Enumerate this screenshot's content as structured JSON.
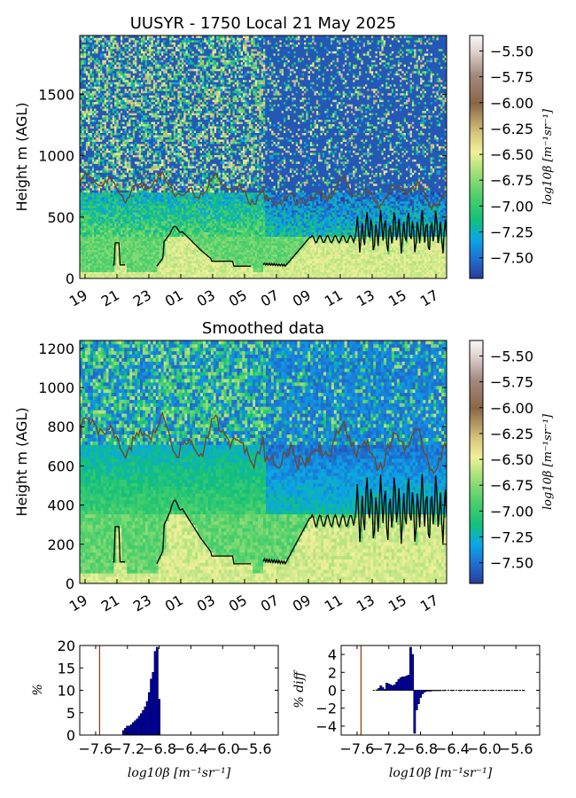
{
  "chart_data": [
    {
      "type": "heatmap",
      "title": "UUSYR - 1750 Local 21 May 2025",
      "xlabel": "",
      "ylabel": "Height m (AGL)",
      "x_tick_labels": [
        "19",
        "21",
        "23",
        "01",
        "03",
        "05",
        "07",
        "09",
        "11",
        "13",
        "15",
        "17"
      ],
      "y_ticks": [
        0,
        500,
        1000,
        1500
      ],
      "ylim": [
        0,
        1980
      ],
      "colorbar_label": "log10β [m⁻¹sr⁻¹]",
      "colorbar_ticks": [
        "-5.50",
        "-5.75",
        "-6.00",
        "-6.25",
        "-6.50",
        "-6.75",
        "-7.00",
        "-7.25",
        "-7.50"
      ],
      "colorbar_range": [
        -7.7,
        -5.35
      ],
      "overlay_lines": [
        {
          "color": "#000000",
          "label": "black line (boundary layer height)"
        },
        {
          "color": "#6b4a2e",
          "label": "brown line"
        }
      ]
    },
    {
      "type": "heatmap",
      "title": "Smoothed data",
      "xlabel": "",
      "ylabel": "Height m (AGL)",
      "x_tick_labels": [
        "19",
        "21",
        "23",
        "01",
        "03",
        "05",
        "07",
        "09",
        "11",
        "13",
        "15",
        "17"
      ],
      "y_ticks": [
        0,
        200,
        400,
        600,
        800,
        1000,
        1200
      ],
      "ylim": [
        0,
        1240
      ],
      "colorbar_label": "log10β [m⁻¹sr⁻¹]",
      "colorbar_ticks": [
        "-5.50",
        "-5.75",
        "-6.00",
        "-6.25",
        "-6.50",
        "-6.75",
        "-7.00",
        "-7.25",
        "-7.50"
      ],
      "colorbar_range": [
        -7.7,
        -5.35
      ]
    },
    {
      "type": "bar",
      "title": "",
      "xlabel": "log10β [m⁻¹sr⁻¹]",
      "ylabel": "%",
      "x_tick_labels": [
        "-7.6",
        "-7.2",
        "-6.8",
        "-6.4",
        "-6.0",
        "-5.6"
      ],
      "xlim": [
        -7.8,
        -5.3
      ],
      "ylim": [
        0,
        20
      ],
      "y_ticks": [
        0,
        5,
        10,
        15,
        20
      ],
      "vline_x": -7.55,
      "bin_width": 0.025,
      "x": [
        -7.25,
        -7.225,
        -7.2,
        -7.175,
        -7.15,
        -7.125,
        -7.1,
        -7.075,
        -7.05,
        -7.025,
        -7.0,
        -6.975,
        -6.95,
        -6.925,
        -6.9,
        -6.875,
        -6.85,
        -6.825,
        -6.8
      ],
      "values": [
        1.0,
        1.5,
        2.0,
        2.0,
        2.3,
        2.8,
        3.2,
        3.6,
        4.2,
        4.8,
        5.5,
        6.3,
        7.5,
        9.5,
        12.5,
        14.0,
        18.7,
        19.6,
        8.0
      ]
    },
    {
      "type": "bar",
      "title": "",
      "xlabel": "log10β [m⁻¹sr⁻¹]",
      "ylabel": "% diff",
      "x_tick_labels": [
        "-7.6",
        "-7.2",
        "-6.8",
        "-6.4",
        "-6.0",
        "-5.6"
      ],
      "xlim": [
        -7.8,
        -5.3
      ],
      "ylim": [
        -5,
        5
      ],
      "y_ticks": [
        -4,
        -2,
        0,
        2,
        4
      ],
      "vline_x": -7.55,
      "bin_width": 0.025,
      "x": [
        -7.35,
        -7.325,
        -7.3,
        -7.275,
        -7.25,
        -7.225,
        -7.2,
        -7.175,
        -7.15,
        -7.125,
        -7.1,
        -7.075,
        -7.05,
        -7.025,
        -7.0,
        -6.975,
        -6.95,
        -6.925,
        -6.9,
        -6.875,
        -6.85,
        -6.825,
        -6.8,
        -6.775,
        -6.75,
        -6.725,
        -6.7,
        -6.675,
        -6.65,
        -6.625,
        -6.6,
        -6.575,
        -6.55,
        -6.5,
        -6.4,
        -6.3,
        -6.2,
        -6.1,
        -6.0,
        -5.9,
        -5.8,
        -5.7,
        -5.6,
        -5.5
      ],
      "values": [
        0.05,
        0.2,
        0.5,
        0.3,
        0.1,
        0.8,
        0.7,
        0.6,
        0.5,
        0.6,
        0.9,
        1.2,
        1.4,
        1.5,
        1.5,
        1.6,
        1.7,
        4.8,
        4.0,
        -4.8,
        -2.2,
        -1.5,
        -0.8,
        -0.4,
        -0.2,
        -0.1,
        -0.1,
        -0.1,
        -0.05,
        -0.05,
        -0.05,
        -0.05,
        -0.05,
        -0.05,
        -0.05,
        -0.05,
        -0.05,
        -0.05,
        -0.05,
        -0.05,
        -0.05,
        -0.05,
        -0.05,
        -0.05
      ]
    }
  ]
}
